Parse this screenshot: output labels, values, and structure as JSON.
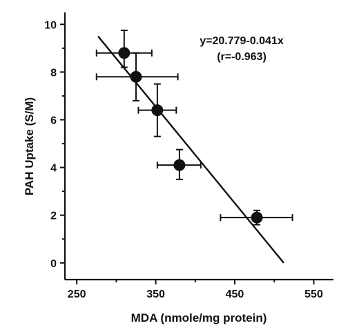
{
  "chart_data": {
    "type": "scatter",
    "xlabel": "MDA (nmole/mg protein)",
    "ylabel": "PAH Uptake (S/M)",
    "xlim": [
      235,
      575
    ],
    "ylim": [
      -0.7,
      10.5
    ],
    "xticks": [
      250,
      350,
      450,
      550
    ],
    "yticks": [
      0,
      2,
      4,
      6,
      8,
      10
    ],
    "grid": false,
    "points": [
      {
        "x": 310,
        "y": 8.8,
        "xerr_low": 275,
        "xerr_high": 345,
        "yerr_low": 8.2,
        "yerr_high": 9.75
      },
      {
        "x": 325,
        "y": 7.8,
        "xerr_low": 275,
        "xerr_high": 378,
        "yerr_low": 6.8,
        "yerr_high": 8.8
      },
      {
        "x": 352,
        "y": 6.4,
        "xerr_low": 328,
        "xerr_high": 376,
        "yerr_low": 5.3,
        "yerr_high": 7.5
      },
      {
        "x": 380,
        "y": 4.1,
        "xerr_low": 352,
        "xerr_high": 407,
        "yerr_low": 3.5,
        "yerr_high": 4.75
      },
      {
        "x": 478,
        "y": 1.9,
        "xerr_low": 432,
        "xerr_high": 523,
        "yerr_low": 1.6,
        "yerr_high": 2.2
      }
    ],
    "fit_line": {
      "x": [
        277,
        512
      ],
      "y": [
        9.5,
        0.0
      ]
    },
    "annotations": [
      "y=20.779-0.041x",
      "(r=-0.963)"
    ]
  }
}
